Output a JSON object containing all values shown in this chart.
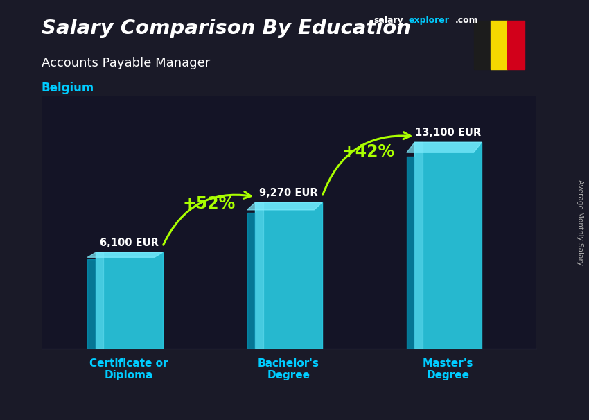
{
  "title_main": "Salary Comparison By Education",
  "subtitle": "Accounts Payable Manager",
  "country": "Belgium",
  "watermark_salary": "salary",
  "watermark_explorer": "explorer",
  "watermark_com": ".com",
  "ylabel": "Average Monthly Salary",
  "categories": [
    "Certificate or\nDiploma",
    "Bachelor's\nDegree",
    "Master's\nDegree"
  ],
  "values": [
    6100,
    9270,
    13100
  ],
  "value_labels": [
    "6,100 EUR",
    "9,270 EUR",
    "13,100 EUR"
  ],
  "pct_labels": [
    "+52%",
    "+42%"
  ],
  "bar_color_main": "#29d0e8",
  "bar_color_light": "#80eeff",
  "bar_color_dark": "#0099bb",
  "title_color": "#ffffff",
  "subtitle_color": "#ffffff",
  "country_color": "#00ccff",
  "value_label_color": "#ffffff",
  "pct_color": "#aaff00",
  "arrow_color": "#aaff00",
  "xlabel_color": "#00ccff",
  "bar_width": 0.42,
  "ylim": [
    0,
    16000
  ],
  "flag_colors": [
    "#1c1c1c",
    "#f5d800",
    "#d2001a"
  ],
  "salary_label_color": "#aaaaaa",
  "bg_color": "#1a1a28"
}
